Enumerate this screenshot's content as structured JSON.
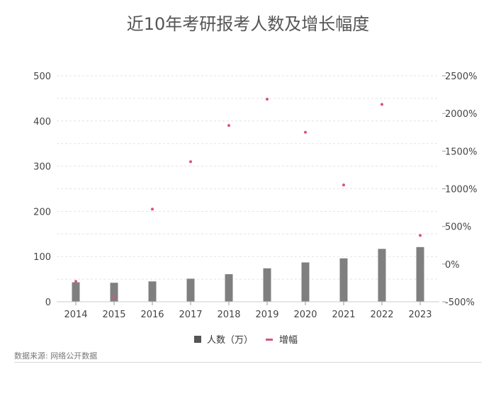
{
  "chart_data": {
    "type": "bar",
    "title": "近10年考研报考人数及增长幅度",
    "categories": [
      "2014",
      "2015",
      "2016",
      "2017",
      "2018",
      "2019",
      "2020",
      "2021",
      "2022",
      "2023"
    ],
    "series": [
      {
        "name": "人数（万）",
        "type": "bar",
        "axis": "left",
        "color": "#7f7f7f",
        "values": [
          43,
          42,
          45,
          51,
          61,
          74,
          87,
          96,
          117,
          121
        ]
      },
      {
        "name": "增幅",
        "type": "scatter",
        "axis": "right",
        "color": "#d9537c",
        "values": [
          -230,
          -440,
          730,
          1360,
          1840,
          2190,
          1750,
          1050,
          2120,
          380
        ]
      }
    ],
    "ylim_left": [
      0,
      500
    ],
    "yticks_left": [
      0,
      100,
      200,
      300,
      400,
      500
    ],
    "ytick_labels_left": [
      "0",
      "100",
      "200",
      "300",
      "400",
      "500"
    ],
    "ylim_right": [
      -500,
      2500
    ],
    "yticks_right": [
      -500,
      0,
      500,
      1000,
      1500,
      2000,
      2500
    ],
    "ytick_labels_right": [
      "-500%",
      "0%",
      "500%",
      "1000%",
      "1500%",
      "2000%",
      "2500%"
    ],
    "grid": true,
    "legend": "bottom-center"
  },
  "source_note": "数据来源: 网络公开数据"
}
